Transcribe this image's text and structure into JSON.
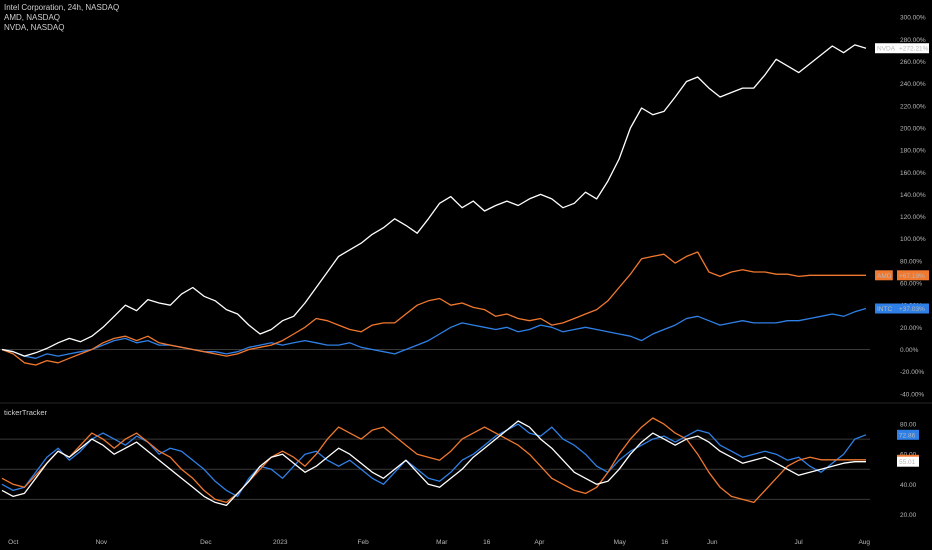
{
  "legend": {
    "line1": "Intel Corporation, 24h, NASDAQ",
    "line2": "AMD, NASDAQ",
    "line3": "NVDA, NASDAQ"
  },
  "oscillator": {
    "title": "tickerTracker"
  },
  "colors": {
    "background": "#000000",
    "nvda": "#ffffff",
    "amd": "#f0782f",
    "intc": "#2f80e6",
    "zero_line": "#3a3a3a",
    "band_line": "#3a3a3a"
  },
  "chart_data": [
    {
      "type": "line",
      "y_axis_ticks": [
        "300.00%",
        "280.00%",
        "260.00%",
        "240.00%",
        "220.00%",
        "200.00%",
        "180.00%",
        "160.00%",
        "140.00%",
        "120.00%",
        "100.00%",
        "80.00%",
        "60.00%",
        "40.00%",
        "20.00%",
        "0.00%",
        "-20.00%",
        "-40.00%"
      ],
      "ylim": [
        -42,
        302
      ],
      "x_axis_ticks": [
        "Oct",
        "Nov",
        "Dec",
        "2023",
        "Feb",
        "Mar",
        "16",
        "Apr",
        "May",
        "16",
        "Jun",
        "Jul",
        "Aug"
      ],
      "series": [
        {
          "name": "NVDA",
          "end_label": "+272.21%",
          "values": [
            0,
            -2,
            -6,
            -3,
            1,
            6,
            10,
            7,
            12,
            20,
            30,
            40,
            35,
            45,
            42,
            40,
            50,
            56,
            48,
            44,
            36,
            32,
            22,
            14,
            18,
            26,
            30,
            42,
            56,
            70,
            84,
            90,
            96,
            104,
            110,
            118,
            112,
            105,
            118,
            132,
            138,
            128,
            134,
            125,
            130,
            134,
            130,
            136,
            140,
            136,
            128,
            132,
            142,
            136,
            152,
            172,
            200,
            218,
            212,
            215,
            228,
            242,
            246,
            236,
            228,
            232,
            236,
            236,
            248,
            262,
            256,
            250,
            258,
            266,
            274,
            268,
            275,
            272
          ]
        },
        {
          "name": "AMD",
          "end_label": "+67.19%",
          "values": [
            0,
            -4,
            -12,
            -14,
            -10,
            -12,
            -8,
            -4,
            0,
            6,
            10,
            12,
            8,
            12,
            6,
            4,
            2,
            0,
            -2,
            -4,
            -6,
            -4,
            0,
            2,
            4,
            8,
            14,
            20,
            28,
            26,
            22,
            18,
            16,
            22,
            24,
            24,
            32,
            40,
            44,
            46,
            40,
            42,
            38,
            36,
            30,
            32,
            28,
            26,
            28,
            22,
            24,
            28,
            32,
            36,
            44,
            56,
            68,
            82,
            84,
            86,
            78,
            84,
            88,
            70,
            66,
            70,
            72,
            70,
            70,
            68,
            68,
            66,
            67,
            67,
            67,
            67,
            67,
            67
          ]
        },
        {
          "name": "INTC",
          "end_label": "+37.03%",
          "values": [
            0,
            -2,
            -6,
            -8,
            -4,
            -6,
            -4,
            -2,
            0,
            4,
            8,
            10,
            6,
            8,
            4,
            4,
            2,
            0,
            -2,
            -2,
            -4,
            -2,
            2,
            4,
            6,
            4,
            6,
            8,
            6,
            4,
            4,
            6,
            2,
            0,
            -2,
            -4,
            0,
            4,
            8,
            14,
            20,
            24,
            22,
            20,
            18,
            20,
            16,
            18,
            22,
            20,
            16,
            18,
            20,
            18,
            16,
            14,
            12,
            8,
            14,
            18,
            22,
            28,
            30,
            26,
            22,
            24,
            26,
            24,
            24,
            24,
            26,
            26,
            28,
            30,
            32,
            30,
            34,
            37
          ]
        }
      ]
    },
    {
      "type": "line",
      "title": "tickerTracker",
      "y_axis_ticks": [
        "80.00",
        "60.00",
        "40.00",
        "20.00"
      ],
      "ylim": [
        15,
        88
      ],
      "series": [
        {
          "name": "INTC",
          "end_label": "72.86",
          "values": [
            40,
            36,
            38,
            48,
            58,
            64,
            56,
            62,
            70,
            74,
            70,
            66,
            72,
            68,
            60,
            64,
            62,
            56,
            50,
            42,
            36,
            32,
            44,
            52,
            50,
            44,
            52,
            60,
            62,
            56,
            52,
            56,
            50,
            44,
            40,
            48,
            56,
            50,
            44,
            42,
            48,
            56,
            60,
            66,
            72,
            76,
            80,
            74,
            72,
            78,
            70,
            66,
            60,
            52,
            48,
            56,
            62,
            66,
            70,
            72,
            68,
            72,
            76,
            74,
            66,
            62,
            58,
            60,
            62,
            60,
            56,
            58,
            52,
            48,
            54,
            60,
            70,
            72.86
          ]
        },
        {
          "name": "AMD",
          "end_label": "56.30",
          "values": [
            44,
            40,
            38,
            46,
            54,
            62,
            58,
            66,
            74,
            70,
            64,
            70,
            74,
            68,
            62,
            58,
            50,
            44,
            36,
            30,
            28,
            34,
            42,
            50,
            58,
            62,
            58,
            52,
            60,
            70,
            78,
            74,
            70,
            76,
            78,
            72,
            66,
            60,
            58,
            56,
            62,
            70,
            74,
            78,
            74,
            70,
            66,
            60,
            52,
            44,
            40,
            36,
            34,
            38,
            48,
            60,
            70,
            78,
            84,
            80,
            74,
            70,
            60,
            48,
            38,
            32,
            30,
            28,
            36,
            44,
            52,
            56,
            58,
            56.3,
            56.3,
            56.3,
            56.3,
            56.3
          ]
        },
        {
          "name": "NVDA",
          "end_label": "55.01",
          "values": [
            36,
            32,
            34,
            44,
            54,
            62,
            58,
            64,
            70,
            66,
            60,
            64,
            68,
            62,
            56,
            50,
            44,
            38,
            32,
            28,
            26,
            34,
            42,
            52,
            58,
            60,
            54,
            48,
            52,
            58,
            64,
            60,
            54,
            48,
            44,
            50,
            56,
            48,
            40,
            38,
            44,
            50,
            58,
            64,
            70,
            76,
            82,
            78,
            70,
            64,
            56,
            48,
            44,
            40,
            42,
            50,
            60,
            68,
            74,
            70,
            66,
            70,
            72,
            68,
            62,
            58,
            54,
            56,
            58,
            54,
            50,
            46,
            48,
            50,
            52,
            54,
            55,
            55.01
          ]
        }
      ]
    }
  ]
}
